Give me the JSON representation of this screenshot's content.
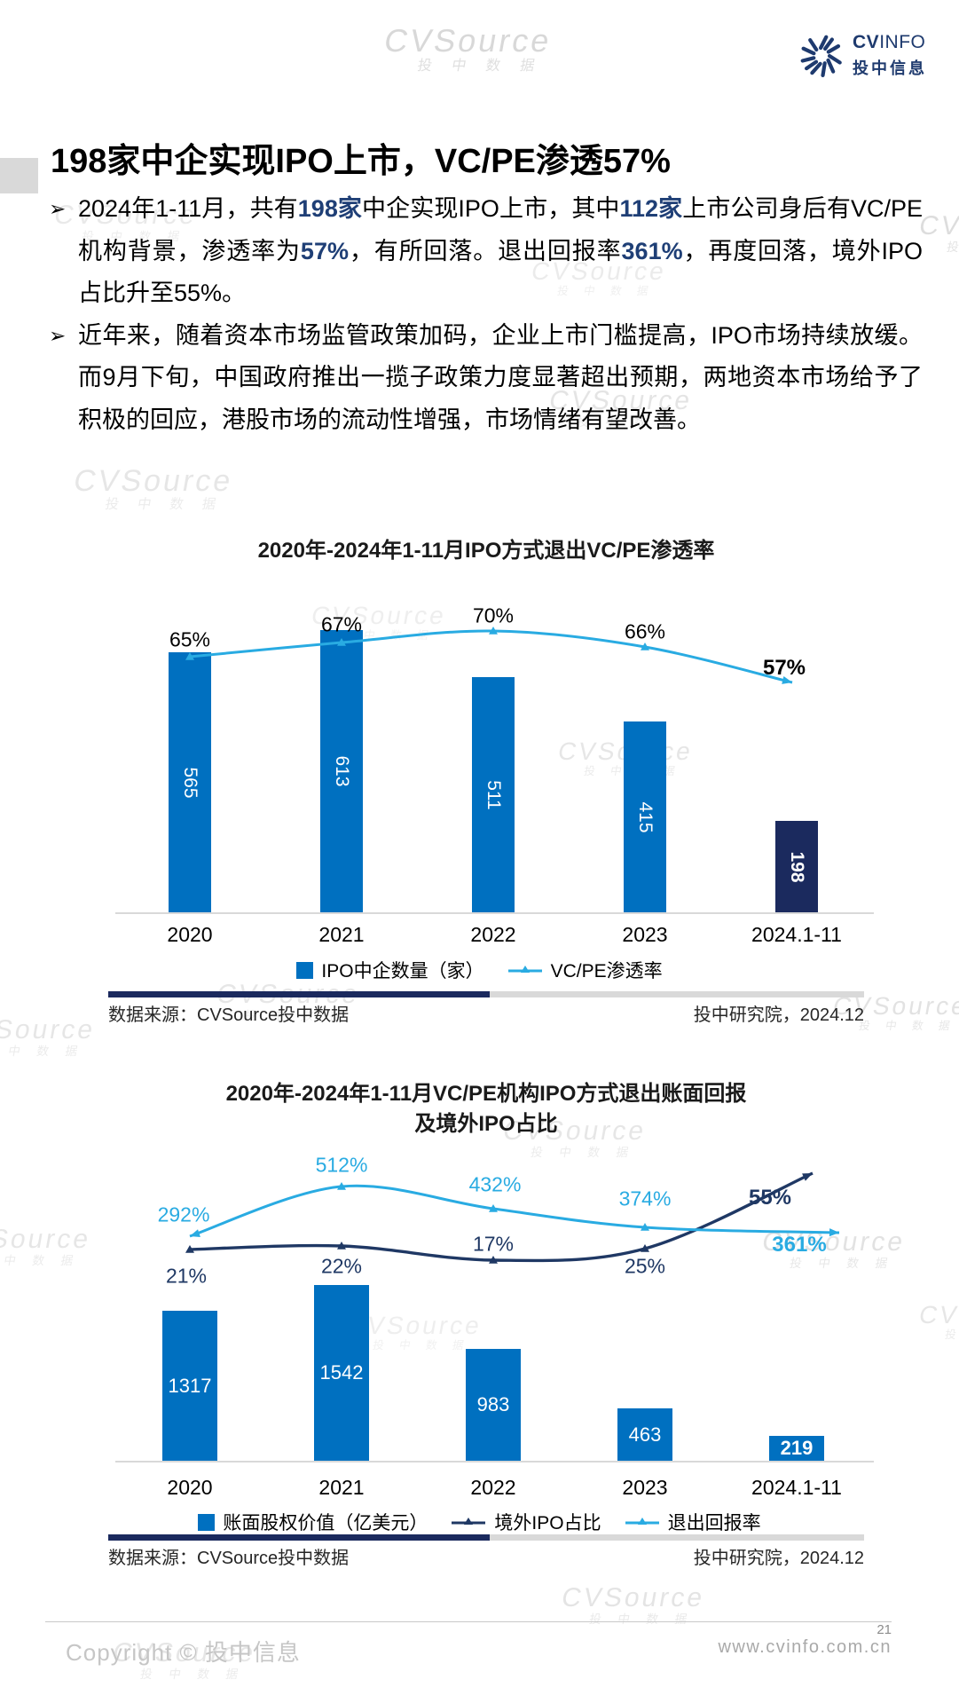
{
  "watermark": {
    "text": "CVSource",
    "sub": "投 中 数 据"
  },
  "logo": {
    "cv": "CV",
    "info": "INFO",
    "cn": "投中信息"
  },
  "title": "198家中企实现IPO上市，VC/PE渗透57%",
  "bullet_marker": "➢",
  "bullets": [
    {
      "segments": [
        {
          "t": "2024年1-11月，共有"
        },
        {
          "t": "198家",
          "b": true
        },
        {
          "t": "中企实现IPO上市，其中"
        },
        {
          "t": "112家",
          "b": true
        },
        {
          "t": "上市公司身后有VC/PE机构背景，渗透率为"
        },
        {
          "t": "57%",
          "b": true
        },
        {
          "t": "，有所回落。退出回报率"
        },
        {
          "t": "361%",
          "b": true
        },
        {
          "t": "，再度回落，境外IPO占比升至55%。"
        }
      ]
    },
    {
      "segments": [
        {
          "t": "近年来，随着资本市场监管政策加码，企业上市门槛提高，IPO市场持续放缓。而9月下旬，中国政府推出一揽子政策力度显著超出预期，两地资本市场给予了积极的回应，港股市场的流动性增强，市场情绪有望改善。"
        }
      ]
    }
  ],
  "colors": {
    "bar_blue": "#0070C0",
    "bar_navy": "#1B2A5E",
    "line_cyan": "#29ABE2",
    "line_navy": "#1F3864",
    "highlight_text": "#1F3F76",
    "accent_gray": "#D9D9D9"
  },
  "chart_data": [
    {
      "type": "bar+line",
      "title": "2020年-2024年1-11月IPO方式退出VC/PE渗透率",
      "categories": [
        "2020",
        "2021",
        "2022",
        "2023",
        "2024.1-11"
      ],
      "series": [
        {
          "name": "IPO中企数量（家）",
          "type": "bar",
          "values": [
            565,
            613,
            511,
            415,
            198
          ]
        },
        {
          "name": "VC/PE渗透率",
          "type": "line",
          "unit": "%",
          "values": [
            65,
            67,
            70,
            66,
            57
          ]
        }
      ],
      "legend_position": "bottom",
      "grid": false,
      "source_left": "数据来源：CVSource投中数据",
      "source_right": "投中研究院，2024.12"
    },
    {
      "type": "bar+line",
      "title_lines": [
        "2020年-2024年1-11月VC/PE机构IPO方式退出账面回报",
        "及境外IPO占比"
      ],
      "categories": [
        "2020",
        "2021",
        "2022",
        "2023",
        "2024.1-11"
      ],
      "series": [
        {
          "name": "账面股权价值（亿美元）",
          "type": "bar",
          "values": [
            1317,
            1542,
            983,
            463,
            219
          ]
        },
        {
          "name": "境外IPO占比",
          "type": "line",
          "unit": "%",
          "values": [
            21,
            22,
            17,
            25,
            55
          ]
        },
        {
          "name": "退出回报率",
          "type": "line",
          "unit": "%",
          "values": [
            292,
            512,
            432,
            374,
            361
          ]
        }
      ],
      "legend_position": "bottom",
      "grid": false,
      "source_left": "数据来源：CVSource投中数据",
      "source_right": "投中研究院，2024.12"
    }
  ],
  "footer": {
    "copyright": "Copyright © 投中信息",
    "url": "www.cvinfo.com.cn",
    "page": "21"
  }
}
